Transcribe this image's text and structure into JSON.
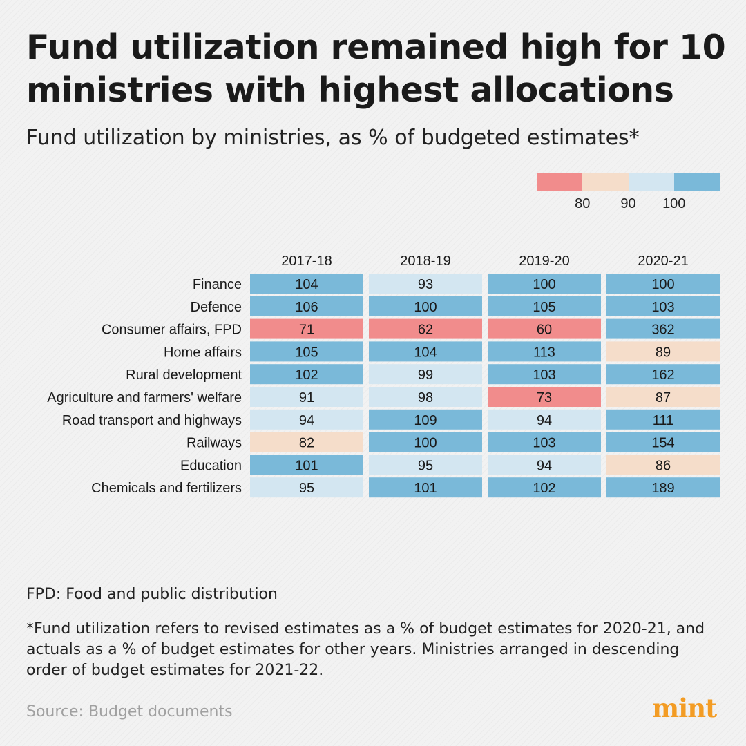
{
  "title": "Fund utilization remained high for 10 ministries with highest allocations",
  "subtitle": "Fund utilization by ministries, as % of budgeted estimates*",
  "legend": {
    "colors": [
      "#f18c8c",
      "#f5ddca",
      "#d3e6f1",
      "#7ab9d9"
    ],
    "ticks": [
      "80",
      "90",
      "100"
    ]
  },
  "chart_data": {
    "type": "heatmap",
    "columns": [
      "2017-18",
      "2018-19",
      "2019-20",
      "2020-21"
    ],
    "rows": [
      "Finance",
      "Defence",
      "Consumer affairs, FPD",
      "Home affairs",
      "Rural development",
      "Agriculture and farmers' welfare",
      "Road transport and highways",
      "Railways",
      "Education",
      "Chemicals and fertilizers"
    ],
    "values": [
      [
        104,
        93,
        100,
        100
      ],
      [
        106,
        100,
        105,
        103
      ],
      [
        71,
        62,
        60,
        362
      ],
      [
        105,
        104,
        113,
        89
      ],
      [
        102,
        99,
        103,
        162
      ],
      [
        91,
        98,
        73,
        87
      ],
      [
        94,
        109,
        94,
        111
      ],
      [
        82,
        100,
        103,
        154
      ],
      [
        101,
        95,
        94,
        86
      ],
      [
        95,
        101,
        102,
        189
      ]
    ],
    "color_scale": {
      "thresholds": [
        80,
        90,
        100
      ],
      "colors": [
        "#f18c8c",
        "#f5ddca",
        "#d3e6f1",
        "#7ab9d9"
      ]
    }
  },
  "notes": {
    "fpd": "FPD: Food and public distribution",
    "star": "*Fund utilization refers to revised estimates as a % of budget estimates for 2020-21, and actuals as a % of budget estimates for other years. Ministries arranged in descending order of budget estimates for 2021-22."
  },
  "source": "Source: Budget documents",
  "logo": "mint"
}
